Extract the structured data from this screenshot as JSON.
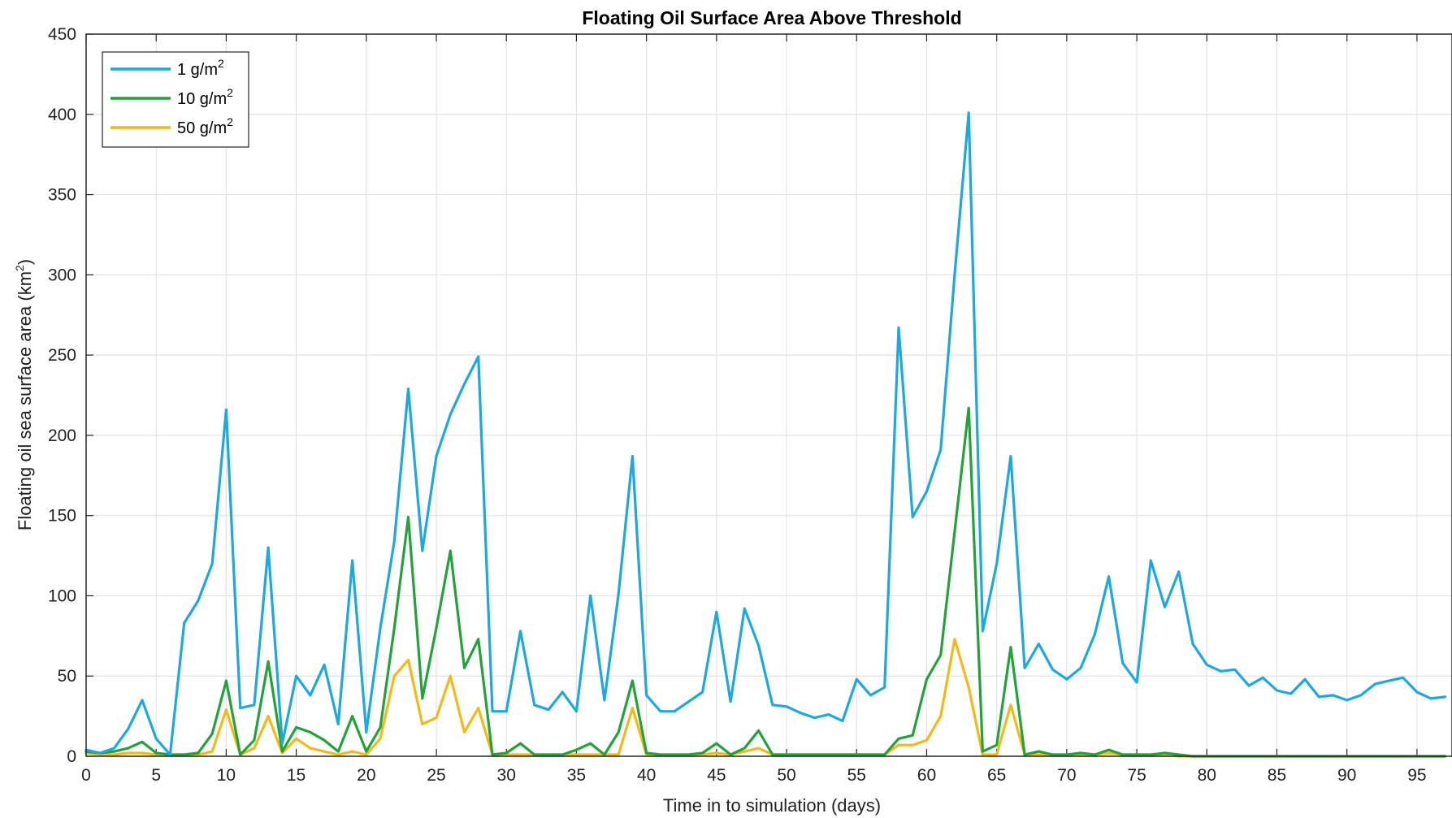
{
  "chart_data": {
    "type": "line",
    "title": "Floating Oil Surface Area Above Threshold",
    "xlabel": "Time in to simulation (days)",
    "ylabel_main": "Floating oil sea surface area (km",
    "ylabel_sup": "2",
    "ylabel_close": ")",
    "xlim": [
      0,
      97.5
    ],
    "ylim": [
      0,
      450
    ],
    "xticks": [
      0,
      5,
      10,
      15,
      20,
      25,
      30,
      35,
      40,
      45,
      50,
      55,
      60,
      65,
      70,
      75,
      80,
      85,
      90,
      95
    ],
    "yticks": [
      0,
      50,
      100,
      150,
      200,
      250,
      300,
      350,
      400,
      450
    ],
    "grid": true,
    "legend_position": "top-left",
    "x": [
      0,
      1,
      2,
      3,
      4,
      5,
      6,
      7,
      8,
      9,
      10,
      11,
      12,
      13,
      14,
      15,
      16,
      17,
      18,
      19,
      20,
      21,
      22,
      23,
      24,
      25,
      26,
      27,
      28,
      29,
      30,
      31,
      32,
      33,
      34,
      35,
      36,
      37,
      38,
      39,
      40,
      41,
      42,
      43,
      44,
      45,
      46,
      47,
      48,
      49,
      50,
      51,
      52,
      53,
      54,
      55,
      56,
      57,
      58,
      59,
      60,
      61,
      62,
      63,
      64,
      65,
      66,
      67,
      68,
      69,
      70,
      71,
      72,
      73,
      74,
      75,
      76,
      77,
      78,
      79,
      80,
      81,
      82,
      83,
      84,
      85,
      86,
      87,
      88,
      89,
      90,
      91,
      92,
      93,
      94,
      95,
      96,
      97
    ],
    "series": [
      {
        "name_main": "1 g/m",
        "name_sup": "2",
        "color": "#1aa9e0",
        "values": [
          4,
          2,
          5,
          17,
          35,
          11,
          1,
          83,
          97,
          120,
          216,
          30,
          32,
          130,
          8,
          50,
          38,
          57,
          20,
          122,
          15,
          80,
          134,
          229,
          128,
          187,
          213,
          232,
          249,
          28,
          28,
          78,
          32,
          29,
          40,
          28,
          100,
          35,
          101,
          187,
          38,
          28,
          28,
          34,
          40,
          90,
          34,
          92,
          69,
          32,
          31,
          27,
          24,
          26,
          22,
          48,
          38,
          43,
          267,
          149,
          165,
          191,
          300,
          401,
          78,
          120,
          187,
          55,
          70,
          54,
          48,
          55,
          76,
          112,
          58,
          46,
          122,
          93,
          115,
          70,
          57,
          53,
          54,
          44,
          49,
          41,
          39,
          48,
          37,
          38,
          35,
          38,
          45,
          47,
          49,
          40,
          36,
          37
        ]
      },
      {
        "name_main": "10 g/m",
        "name_sup": "2",
        "color": "#1fa33a",
        "values": [
          3,
          2,
          3,
          5,
          9,
          2,
          1,
          1,
          2,
          14,
          47,
          1,
          10,
          59,
          3,
          18,
          15,
          10,
          3,
          25,
          3,
          18,
          80,
          149,
          36,
          80,
          128,
          55,
          73,
          1,
          2,
          8,
          1,
          1,
          1,
          4,
          8,
          1,
          15,
          47,
          2,
          1,
          1,
          1,
          2,
          8,
          1,
          5,
          16,
          1,
          1,
          1,
          1,
          1,
          1,
          1,
          1,
          1,
          11,
          13,
          48,
          63,
          140,
          217,
          3,
          7,
          68,
          1,
          3,
          1,
          1,
          2,
          1,
          4,
          1,
          1,
          1,
          2,
          1,
          0,
          0,
          0,
          0,
          0,
          0,
          0,
          0,
          0,
          0,
          0,
          0,
          0,
          0,
          0,
          0,
          0,
          0,
          0
        ]
      },
      {
        "name_main": "50 g/m",
        "name_sup": "2",
        "color": "#f4b914",
        "values": [
          2,
          1,
          1,
          2,
          2,
          1,
          1,
          1,
          1,
          3,
          29,
          1,
          5,
          25,
          2,
          11,
          5,
          3,
          1,
          3,
          1,
          11,
          50,
          60,
          20,
          24,
          50,
          15,
          30,
          1,
          1,
          1,
          1,
          1,
          1,
          1,
          1,
          1,
          1,
          30,
          1,
          1,
          1,
          1,
          1,
          2,
          1,
          3,
          5,
          1,
          1,
          1,
          1,
          1,
          1,
          1,
          1,
          1,
          7,
          7,
          10,
          25,
          73,
          43,
          1,
          1,
          32,
          1,
          1,
          1,
          1,
          1,
          1,
          2,
          1,
          1,
          1,
          1,
          0,
          0,
          0,
          0,
          0,
          0,
          0,
          0,
          0,
          0,
          0,
          0,
          0,
          0,
          0,
          0,
          0,
          0,
          0,
          0
        ]
      }
    ]
  }
}
